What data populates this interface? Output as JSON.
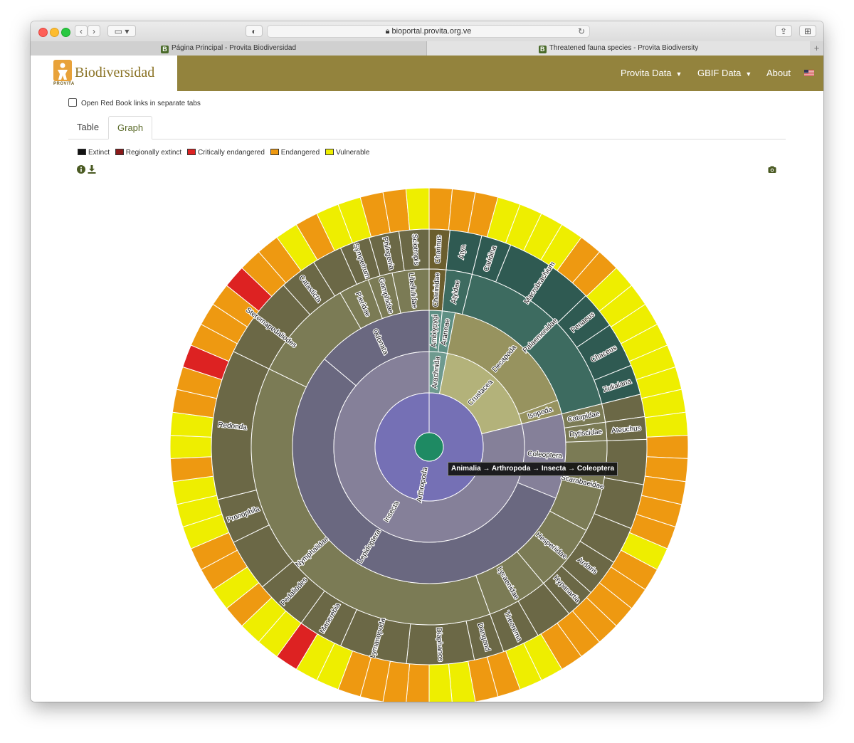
{
  "browser": {
    "url": "bioportal.provita.org.ve",
    "tabs": [
      {
        "label": "Página Principal - Provita Biodiversidad",
        "favicon": "B"
      },
      {
        "label": "Threatened fauna species - Provita Biodiversity",
        "favicon": "B"
      }
    ],
    "new_tab": "+"
  },
  "header": {
    "logo_text": "Biodiversidad",
    "logo_sub": "PROVITA",
    "nav": [
      "Provita Data",
      "GBIF Data",
      "About"
    ],
    "flag": "us-flag-icon"
  },
  "options": {
    "open_links_label": "Open Red Book links in separate tabs"
  },
  "tabs": [
    "Table",
    "Graph"
  ],
  "legend": [
    {
      "label": "Extinct",
      "color": "#111111"
    },
    {
      "label": "Regionally extinct",
      "color": "#8b1a1a"
    },
    {
      "label": "Critically endangered",
      "color": "#dd2222"
    },
    {
      "label": "Endangered",
      "color": "#ee9911"
    },
    {
      "label": "Vulnerable",
      "color": "#eeee00"
    }
  ],
  "tooltip": "Animalia → Arthropoda → Insecta → Coleoptera",
  "chart_data": {
    "type": "sunburst",
    "root": "Animalia",
    "phylum": {
      "name": "Arthropoda",
      "share": 1.0
    },
    "classes": [
      {
        "name": "Insecta",
        "share": 0.8
      },
      {
        "name": "Crustacea",
        "share": 0.16
      },
      {
        "name": "Arachnida",
        "share": 0.04
      }
    ],
    "orders": [
      {
        "name": "Lepidoptera",
        "class": "Insecta",
        "share": 0.57
      },
      {
        "name": "Odonata",
        "class": "Insecta",
        "share": 0.13
      },
      {
        "name": "Coleoptera",
        "class": "Insecta",
        "share": 0.1
      },
      {
        "name": "Decapoda",
        "class": "Crustacea",
        "share": 0.14
      },
      {
        "name": "Isopoda",
        "class": "Crustacea",
        "share": 0.02
      },
      {
        "name": "Araneae",
        "class": "Arachnida",
        "share": 0.02
      },
      {
        "name": "Amblypygi",
        "class": "Arachnida",
        "share": 0.02
      }
    ],
    "families": [
      "Nymphalidae",
      "Lycaenidae",
      "Hesperiidae",
      "Pieridae",
      "Gomphidae",
      "Libellulidae",
      "Scarabaeidae",
      "Dytiscidae",
      "Catopidae",
      "Palaemonidae",
      "Atyidae",
      "Charinidae"
    ],
    "genera": [
      "Redonda",
      "Pronophila",
      "Pedaliodes",
      "Manerebia",
      "Lymanopoda",
      "Diaphanos",
      "Dangond",
      "Theorema",
      "Lycaenidae",
      "Hypanartia",
      "Ardaris",
      "Ateuchus",
      "Zulialana",
      "Chaceus",
      "Penaeus",
      "Macrobrachium",
      "Caridina",
      "Atya",
      "Charinus",
      "Sciotropis",
      "Philogenia",
      "Sympetrum",
      "Catasticta",
      "Steromapedaliodes"
    ],
    "status_ring": [
      "Endangered",
      "Vulnerable",
      "Critically endangered"
    ],
    "grid": false,
    "legend_position": "top-left"
  }
}
